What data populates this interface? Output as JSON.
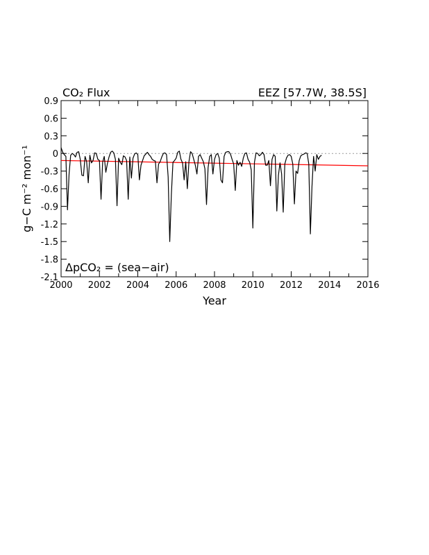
{
  "chart_data": {
    "type": "line",
    "title_left": "CO₂ Flux",
    "title_right": "EEZ [57.7W, 38.5S]",
    "annotation": "ΔpCO₂ = (sea−air)",
    "xlabel": "Year",
    "ylabel": "g−C m⁻² mon⁻¹",
    "xlim": [
      2000,
      2016
    ],
    "ylim": [
      -2.1,
      0.9
    ],
    "x_ticks": [
      2000,
      2002,
      2004,
      2006,
      2008,
      2010,
      2012,
      2014,
      2016
    ],
    "x_tick_labels": [
      "2000",
      "2002",
      "2004",
      "2006",
      "2008",
      "2010",
      "2012",
      "2014",
      "2016"
    ],
    "y_ticks": [
      0.9,
      0.6,
      0.3,
      0,
      -0.3,
      -0.6,
      -0.9,
      -1.2,
      -1.5,
      -1.8,
      -2.1
    ],
    "y_tick_labels": [
      "0.9",
      "0.6",
      "0.3",
      "0",
      "-0.3",
      "-0.6",
      "-0.9",
      "-1.2",
      "-1.5",
      "-1.8",
      "-2.1"
    ],
    "zero_line": 0,
    "grid": false,
    "colors": {
      "series": "#000000",
      "trend": "#ff0000",
      "zero_line": "#999999"
    },
    "series": [
      {
        "x_start": 2000.0,
        "x_step": 0.0833333,
        "values": [
          0.1,
          0.02,
          -0.02,
          -0.05,
          -0.96,
          -0.35,
          -0.03,
          0.0,
          -0.02,
          -0.06,
          0.02,
          0.03,
          -0.1,
          -0.37,
          -0.38,
          -0.05,
          -0.14,
          -0.5,
          -0.03,
          -0.16,
          -0.12,
          0.01,
          0.0,
          -0.1,
          -0.12,
          -0.78,
          -0.15,
          -0.05,
          -0.32,
          -0.17,
          -0.06,
          0.02,
          0.04,
          0.01,
          -0.1,
          -0.89,
          -0.08,
          -0.15,
          -0.19,
          -0.04,
          -0.06,
          -0.12,
          -0.78,
          -0.06,
          -0.42,
          -0.08,
          -0.01,
          0.01,
          -0.02,
          -0.45,
          -0.2,
          -0.12,
          -0.04,
          -0.01,
          0.02,
          -0.02,
          -0.05,
          -0.1,
          -0.12,
          -0.13,
          -0.5,
          -0.18,
          -0.14,
          -0.06,
          0.0,
          0.01,
          -0.02,
          -0.4,
          -1.5,
          -0.7,
          -0.15,
          -0.12,
          -0.08,
          0.02,
          0.04,
          -0.1,
          -0.16,
          -0.45,
          -0.14,
          -0.6,
          -0.14,
          0.03,
          0.0,
          -0.1,
          -0.2,
          -0.35,
          -0.05,
          -0.02,
          -0.08,
          -0.14,
          -0.26,
          -0.87,
          -0.24,
          -0.05,
          -0.02,
          -0.35,
          -0.1,
          -0.02,
          0.0,
          -0.08,
          -0.45,
          -0.5,
          -0.05,
          0.02,
          0.03,
          0.03,
          -0.01,
          -0.1,
          -0.18,
          -0.63,
          -0.12,
          -0.2,
          -0.15,
          -0.22,
          -0.08,
          0.0,
          0.01,
          -0.1,
          -0.15,
          -0.28,
          -1.27,
          -0.15,
          0.01,
          0.0,
          -0.04,
          -0.02,
          0.02,
          -0.02,
          -0.2,
          -0.2,
          -0.12,
          -0.55,
          -0.1,
          -0.02,
          -0.05,
          -0.98,
          -0.37,
          -0.16,
          -0.35,
          -1.0,
          -0.18,
          -0.08,
          -0.03,
          -0.02,
          -0.05,
          -0.18,
          -0.86,
          -0.3,
          -0.34,
          -0.12,
          -0.04,
          -0.02,
          -0.01,
          0.01,
          0.0,
          -0.18,
          -1.37,
          -0.56,
          -0.05,
          -0.3,
          -0.02,
          -0.1,
          -0.05,
          -0.03
        ]
      }
    ],
    "trend": {
      "x": [
        2000,
        2016
      ],
      "y": [
        -0.12,
        -0.21
      ]
    }
  }
}
